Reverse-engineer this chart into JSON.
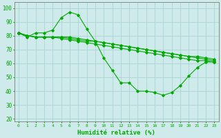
{
  "background_color": "#ceeaea",
  "grid_color": "#aad4d4",
  "line_color": "#00aa00",
  "marker_color": "#00aa00",
  "xlabel": "Humidité relative (%)",
  "xlabel_color": "#00aa00",
  "ylabel_ticks": [
    20,
    30,
    40,
    50,
    60,
    70,
    80,
    90,
    100
  ],
  "xlim": [
    -0.5,
    23.5
  ],
  "ylim": [
    18,
    104
  ],
  "curve1_x": [
    0,
    1,
    2,
    3,
    4,
    5,
    6,
    7,
    8,
    9,
    10,
    11,
    12,
    13,
    14,
    15,
    16,
    17,
    18,
    19,
    20,
    21,
    22,
    23
  ],
  "curve1_y": [
    82,
    79,
    82,
    82,
    84,
    93,
    97,
    95,
    85,
    76,
    64,
    55,
    46,
    46,
    40,
    40,
    39,
    37,
    39,
    44,
    51,
    57,
    61,
    61
  ],
  "curve2_x": [
    0,
    1,
    2,
    3,
    4,
    5,
    6,
    7,
    8,
    9,
    10,
    11,
    12,
    13,
    14,
    15,
    16,
    17,
    18,
    19,
    20,
    21,
    22,
    23
  ],
  "curve2_y": [
    82,
    80,
    79,
    79,
    79,
    79,
    78,
    77,
    76,
    76,
    75,
    74,
    73,
    72,
    71,
    70,
    69,
    68,
    67,
    66,
    65,
    64,
    63,
    62
  ],
  "curve3_x": [
    0,
    1,
    2,
    3,
    4,
    5,
    6,
    7,
    8,
    9,
    10,
    11,
    12,
    13,
    14,
    15,
    16,
    17,
    18,
    19,
    20,
    21,
    22,
    23
  ],
  "curve3_y": [
    82,
    80,
    79,
    79,
    79,
    78,
    77,
    76,
    75,
    74,
    73,
    72,
    71,
    70,
    69,
    68,
    67,
    66,
    65,
    64,
    63,
    62,
    62,
    61
  ],
  "curve4_x": [
    0,
    1,
    2,
    3,
    4,
    5,
    6,
    7,
    8,
    9,
    10,
    11,
    12,
    13,
    14,
    15,
    16,
    17,
    18,
    19,
    20,
    21,
    22,
    23
  ],
  "curve4_y": [
    82,
    80,
    79,
    79,
    79,
    79,
    79,
    78,
    77,
    76,
    75,
    74,
    73,
    72,
    71,
    70,
    69,
    68,
    67,
    66,
    65,
    65,
    64,
    63
  ]
}
